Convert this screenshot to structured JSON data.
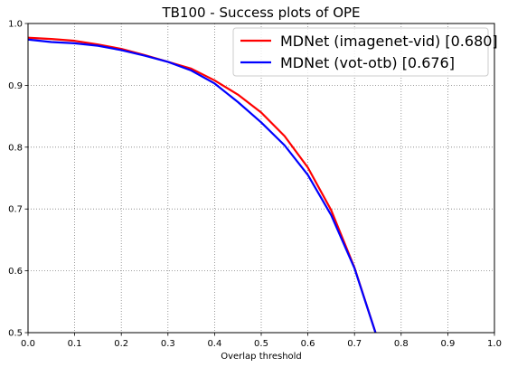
{
  "chart_data": {
    "type": "line",
    "title": "TB100 - Success plots of OPE",
    "xlabel": "Overlap threshold",
    "ylabel": "",
    "xlim": [
      0.0,
      1.0
    ],
    "ylim": [
      0.5,
      1.0
    ],
    "xticks": [
      "0.0",
      "0.1",
      "0.2",
      "0.3",
      "0.4",
      "0.5",
      "0.6",
      "0.7",
      "0.8",
      "0.9",
      "1.0"
    ],
    "yticks": [
      "0.5",
      "0.6",
      "0.7",
      "0.8",
      "0.9",
      "1.0"
    ],
    "grid": true,
    "legend_position": "top-right",
    "series": [
      {
        "name": "MDNet (imagenet-vid) [0.680]",
        "color": "#ff0000",
        "x": [
          0.0,
          0.05,
          0.1,
          0.15,
          0.2,
          0.25,
          0.3,
          0.35,
          0.4,
          0.45,
          0.5,
          0.55,
          0.6,
          0.65,
          0.7,
          0.745
        ],
        "y": [
          0.977,
          0.975,
          0.972,
          0.966,
          0.959,
          0.949,
          0.938,
          0.927,
          0.908,
          0.885,
          0.856,
          0.818,
          0.767,
          0.698,
          0.605,
          0.5
        ]
      },
      {
        "name": "MDNet (vot-otb) [0.676]",
        "color": "#0000ff",
        "x": [
          0.0,
          0.05,
          0.1,
          0.15,
          0.2,
          0.25,
          0.3,
          0.35,
          0.4,
          0.45,
          0.5,
          0.55,
          0.6,
          0.65,
          0.7,
          0.745
        ],
        "y": [
          0.974,
          0.97,
          0.968,
          0.964,
          0.957,
          0.948,
          0.938,
          0.924,
          0.903,
          0.873,
          0.84,
          0.803,
          0.755,
          0.69,
          0.604,
          0.5
        ]
      }
    ]
  }
}
